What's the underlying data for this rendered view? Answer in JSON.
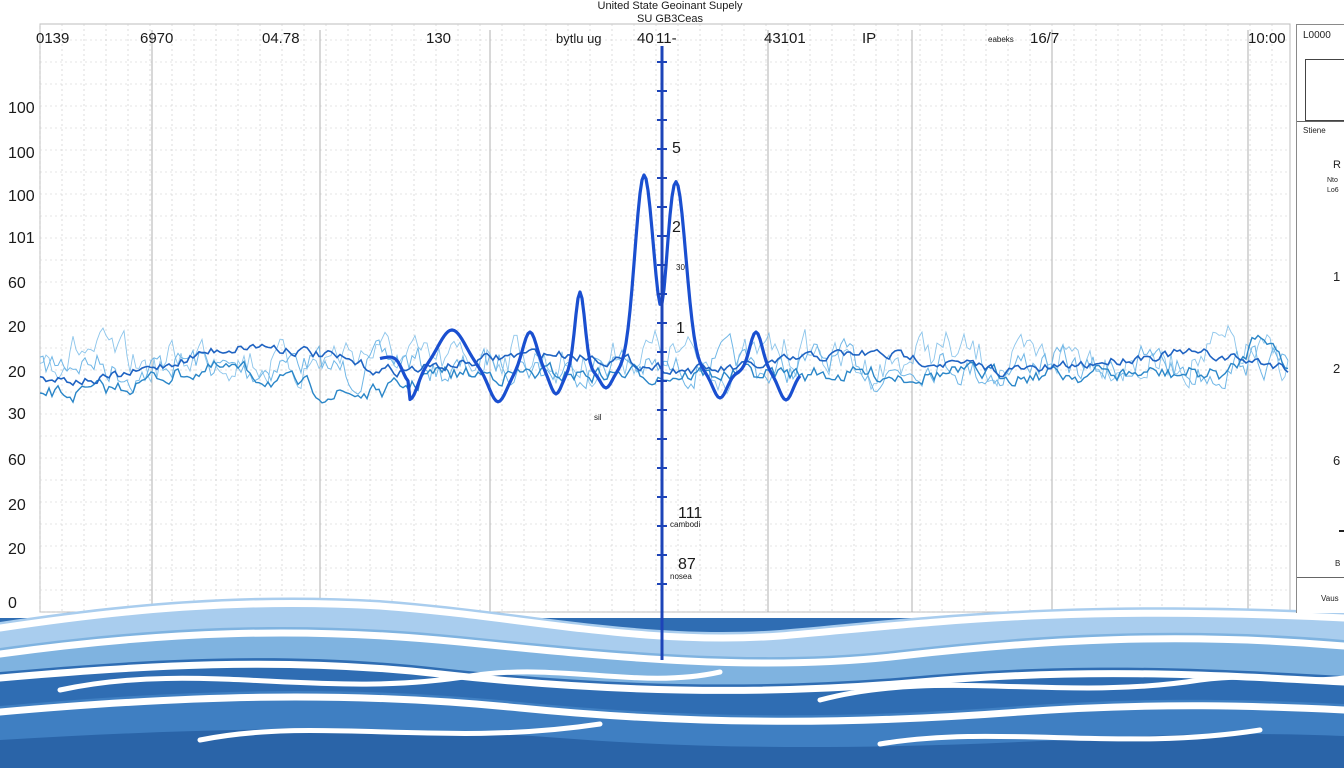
{
  "header": {
    "title": "United State Geoinant Supely",
    "subtitle": "SU GB3Ceas"
  },
  "chart_data": {
    "type": "line",
    "title": "United State Geoinant Supely",
    "subtitle": "SU GB3Ceas",
    "top_labels": [
      "0139",
      "6970",
      "04.78",
      "130",
      "bytlu ug",
      "40",
      "11-",
      "43101",
      "IP",
      "16/7",
      "10:00"
    ],
    "top_label_small": "eabeks",
    "left_labels": [
      "100",
      "100",
      "100",
      "101",
      "60",
      "20",
      "20",
      "30",
      "60",
      "20",
      "20",
      "0"
    ],
    "axis_labels": [
      {
        "text": "5",
        "big": true
      },
      {
        "text": "2",
        "big": true
      },
      {
        "text": "30",
        "big": false
      },
      {
        "text": "1",
        "big": true
      },
      {
        "text": "sil",
        "big": false
      },
      {
        "text": "111",
        "big": true
      },
      {
        "text": "cambodi",
        "big": false
      },
      {
        "text": "87",
        "big": true
      },
      {
        "text": "nosea",
        "big": false
      }
    ],
    "grid": true,
    "colors": {
      "main_series": "#1a4fd0",
      "secondary_series": "#2a86c8",
      "faint_series": "#6fb6e6",
      "center_axis": "#1d44b8",
      "grid": "#c9c9c9",
      "waves": [
        "#2f6db3",
        "#7fb3e0",
        "#a9cdee"
      ]
    }
  },
  "side_panel": {
    "items": [
      "L0000",
      "Stiene",
      "R",
      "Nto",
      "Lo6",
      "1",
      "2",
      "6",
      "B",
      "Vaus"
    ]
  }
}
